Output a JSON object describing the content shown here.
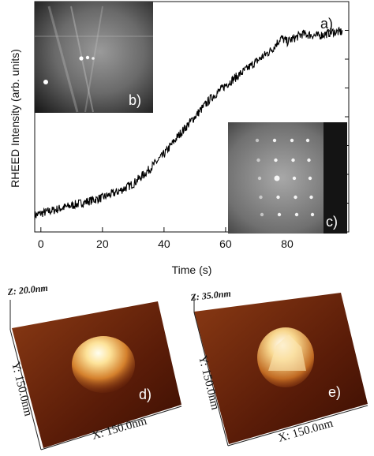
{
  "chart_data": {
    "type": "line",
    "xlabel": "Time (s)",
    "ylabel": "RHEED Intensity (arb. units)",
    "xlim": [
      -2,
      100
    ],
    "x_ticks": [
      0,
      20,
      40,
      60,
      80
    ],
    "y_ticks_shown": false,
    "grid": false,
    "series": [
      {
        "x": [
          -2,
          0,
          5,
          10,
          15,
          20,
          25,
          30,
          35,
          40,
          45,
          50,
          55,
          60,
          65,
          70,
          75,
          78,
          80,
          85,
          90,
          95,
          98
        ],
        "y": [
          0.02,
          0.03,
          0.05,
          0.07,
          0.09,
          0.11,
          0.14,
          0.18,
          0.25,
          0.33,
          0.43,
          0.52,
          0.61,
          0.68,
          0.74,
          0.8,
          0.86,
          0.92,
          0.9,
          0.94,
          0.93,
          0.95,
          0.95
        ],
        "noise": "high-frequency"
      }
    ],
    "annotations": [
      "a)"
    ]
  },
  "insets": {
    "rheed_b": {
      "label": "b)"
    },
    "rheed_c": {
      "label": "c)"
    }
  },
  "afm": [
    {
      "label": "d)",
      "z_scale": "Z: 20.0nm",
      "y_axis": "Y: 150.0nm",
      "x_axis": "X: 150.0nm"
    },
    {
      "label": "e)",
      "z_scale": "Z: 35.0nm",
      "y_axis": "Y: 150.0nm",
      "x_axis": "X: 150.0nm"
    }
  ]
}
